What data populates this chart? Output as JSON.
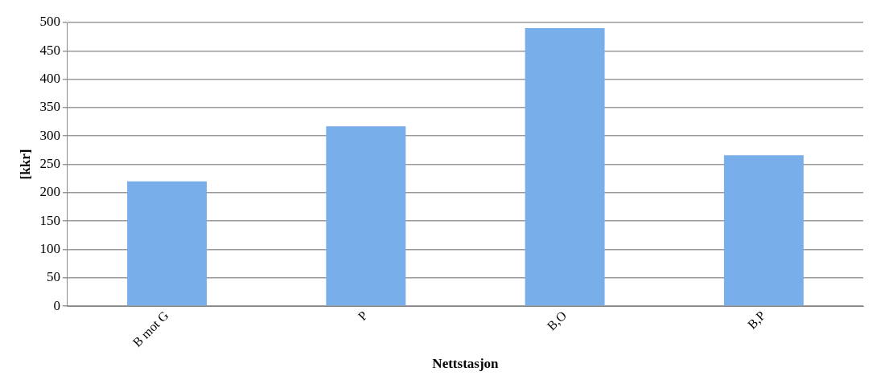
{
  "chart_data": {
    "type": "bar",
    "xlabel": "Nettstasjon",
    "ylabel": "[kkr]",
    "categories": [
      "B mot G",
      "P",
      "B,O",
      "B,P"
    ],
    "values": [
      220,
      317,
      490,
      266
    ],
    "color": "#78aeea",
    "ylim": [
      0,
      500
    ],
    "yticks": [
      0,
      50,
      100,
      150,
      200,
      250,
      300,
      350,
      400,
      450,
      500
    ],
    "grid": "y",
    "legend": false
  }
}
